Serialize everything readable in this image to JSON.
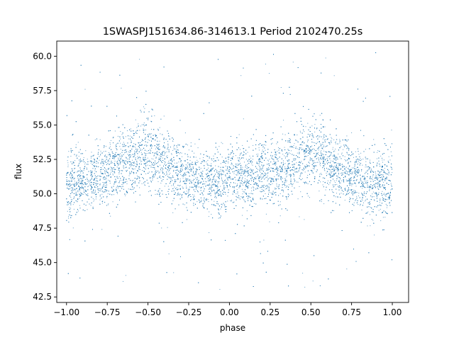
{
  "chart_data": {
    "type": "scatter",
    "title": "1SWASPJ151634.86-314613.1 Period 2102470.25s",
    "xlabel": "phase",
    "ylabel": "flux",
    "xlim": [
      -1.06,
      1.1
    ],
    "ylim": [
      42.1,
      61.1
    ],
    "grid": false,
    "legend": "none",
    "point_color": "#1f77b4",
    "xticks": [
      -1.0,
      -0.75,
      -0.5,
      -0.25,
      0.0,
      0.25,
      0.5,
      0.75,
      1.0
    ],
    "xtick_labels": [
      "−1.00",
      "−0.75",
      "−0.50",
      "−0.25",
      "0.00",
      "0.25",
      "0.50",
      "0.75",
      "1.00"
    ],
    "yticks": [
      42.5,
      45.0,
      47.5,
      50.0,
      52.5,
      55.0,
      57.5,
      60.0
    ],
    "ytick_labels": [
      "42.5",
      "45.0",
      "47.5",
      "50.0",
      "52.5",
      "55.0",
      "57.5",
      "60.0"
    ],
    "x_range": [
      -1.0,
      1.0
    ],
    "y_range": [
      43.0,
      60.3
    ],
    "series": [
      {
        "x": [
          -1.0,
          -0.95,
          -0.9,
          -0.85,
          -0.8,
          -0.75,
          -0.7,
          -0.65,
          -0.6,
          -0.55,
          -0.5,
          -0.45,
          -0.4,
          -0.35,
          -0.3,
          -0.25,
          -0.2,
          -0.15,
          -0.1,
          -0.05,
          0.0,
          0.05,
          0.1,
          0.15,
          0.2,
          0.25,
          0.3,
          0.35,
          0.4,
          0.45,
          0.5,
          0.55,
          0.6,
          0.65,
          0.7,
          0.75,
          0.8,
          0.85,
          0.9,
          0.95,
          1.0
        ],
        "y_center": [
          50.2,
          50.8,
          51.0,
          51.1,
          51.3,
          51.6,
          52.0,
          52.2,
          52.4,
          52.8,
          53.0,
          52.6,
          52.2,
          51.8,
          51.5,
          51.2,
          51.0,
          50.9,
          50.9,
          51.0,
          51.0,
          51.1,
          51.1,
          51.3,
          51.5,
          51.6,
          51.8,
          52.0,
          52.3,
          52.6,
          53.0,
          52.7,
          52.3,
          51.9,
          51.6,
          51.3,
          51.0,
          50.8,
          50.6,
          50.7,
          51.0
        ],
        "y_spread": [
          2.6,
          2.2,
          2.0,
          2.0,
          2.1,
          2.1,
          2.1,
          2.2,
          2.3,
          2.4,
          2.5,
          2.4,
          2.3,
          2.2,
          2.1,
          2.0,
          2.0,
          2.0,
          2.0,
          2.0,
          2.0,
          2.0,
          2.0,
          2.0,
          2.1,
          2.1,
          2.1,
          2.2,
          2.3,
          2.4,
          2.5,
          2.4,
          2.3,
          2.2,
          2.1,
          2.1,
          2.1,
          2.0,
          2.1,
          2.2,
          2.4
        ]
      }
    ]
  }
}
